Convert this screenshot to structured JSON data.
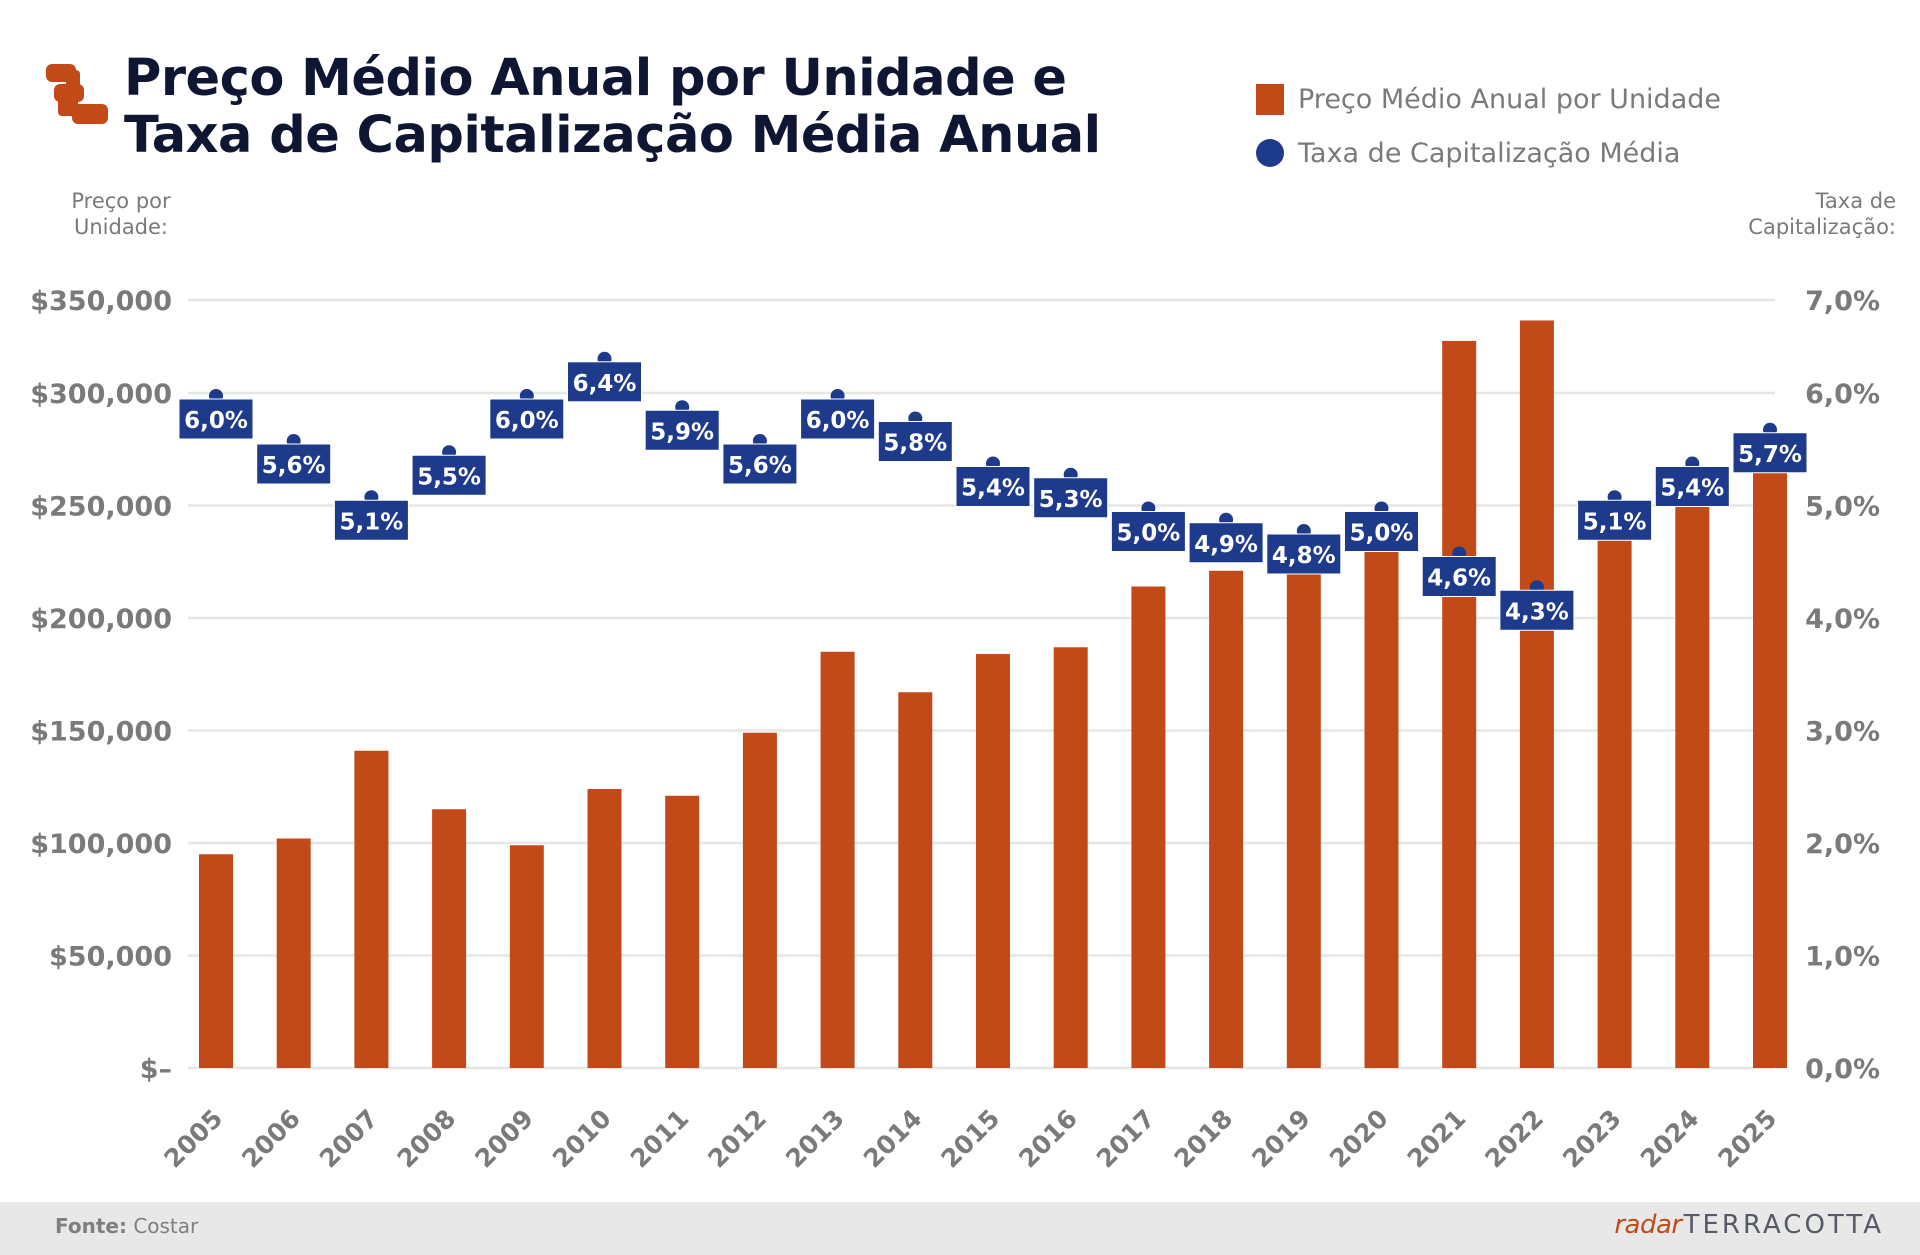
{
  "header": {
    "title_line1": "Preço Médio Anual por Unidade e",
    "title_line2": "Taxa de Capitalização Média Anual",
    "logo": "terracotta-logo-icon"
  },
  "legend": [
    {
      "label": "Preço Médio Anual por Unidade",
      "marker": "square",
      "color": "#C24A19"
    },
    {
      "label": "Taxa de Capitalização Média",
      "marker": "circle",
      "color": "#1E3A8A"
    }
  ],
  "axis_titles": {
    "left_line1": "Preço por",
    "left_line2": "Unidade:",
    "right_line1": "Taxa de",
    "right_line2": "Capitalização:"
  },
  "footer": {
    "source_label": "Fonte:",
    "source_value": "Costar",
    "brand_part1": "radar",
    "brand_part2": "TERRACOTTA"
  },
  "colors": {
    "bar": "#C24A19",
    "rate": "#1E3A8A",
    "grid": "#E6E6E6",
    "axis_text": "#7a7a7a"
  },
  "chart_data": {
    "type": "bar",
    "title": "Preço Médio Anual por Unidade e Taxa de Capitalização Média Anual",
    "xlabel": "",
    "ylabel": "Preço por Unidade:",
    "y2label": "Taxa de Capitalização:",
    "categories": [
      "2005",
      "2006",
      "2007",
      "2008",
      "2009",
      "2010",
      "2011",
      "2012",
      "2013",
      "2014",
      "2015",
      "2016",
      "2017",
      "2018",
      "2019",
      "2020",
      "2021",
      "2022",
      "2023",
      "2024",
      "2025"
    ],
    "ylim": [
      0,
      350000
    ],
    "y2lim": [
      0,
      7.0
    ],
    "yticks": [
      0,
      50000,
      100000,
      150000,
      200000,
      250000,
      300000,
      350000
    ],
    "ytick_labels": [
      "$–",
      "$50,000",
      "$100,000",
      "$150,000",
      "$200,000",
      "$250,000",
      "$300,000",
      "$350,000"
    ],
    "y2ticks": [
      0,
      1,
      2,
      3,
      4,
      5,
      6,
      7
    ],
    "y2tick_labels": [
      "0,0%",
      "1,0%",
      "2,0%",
      "3,0%",
      "4,0%",
      "5,0%",
      "6,0%",
      "7,0%"
    ],
    "grid": true,
    "legend_position": "top-right",
    "series": [
      {
        "name": "Preço Médio Anual por Unidade",
        "type": "bar",
        "axis": "left",
        "values": [
          95000,
          102000,
          141000,
          115000,
          99000,
          124000,
          121000,
          149000,
          185000,
          167000,
          184000,
          187000,
          214000,
          221000,
          226000,
          234000,
          328000,
          339000,
          240000,
          255000,
          275000
        ]
      },
      {
        "name": "Taxa de Capitalização Média",
        "type": "point",
        "axis": "right",
        "values": [
          6.0,
          5.6,
          5.1,
          5.5,
          6.0,
          6.4,
          5.9,
          5.6,
          6.0,
          5.8,
          5.4,
          5.3,
          5.0,
          4.9,
          4.8,
          5.0,
          4.6,
          4.3,
          5.1,
          5.4,
          5.7
        ],
        "labels": [
          "6,0%",
          "5,6%",
          "5,1%",
          "5,5%",
          "6,0%",
          "6,4%",
          "5,9%",
          "5,6%",
          "6,0%",
          "5,8%",
          "5,4%",
          "5,3%",
          "5,0%",
          "4,9%",
          "4,8%",
          "5,0%",
          "4,6%",
          "4,3%",
          "5,1%",
          "5,4%",
          "5,7%"
        ]
      }
    ]
  }
}
